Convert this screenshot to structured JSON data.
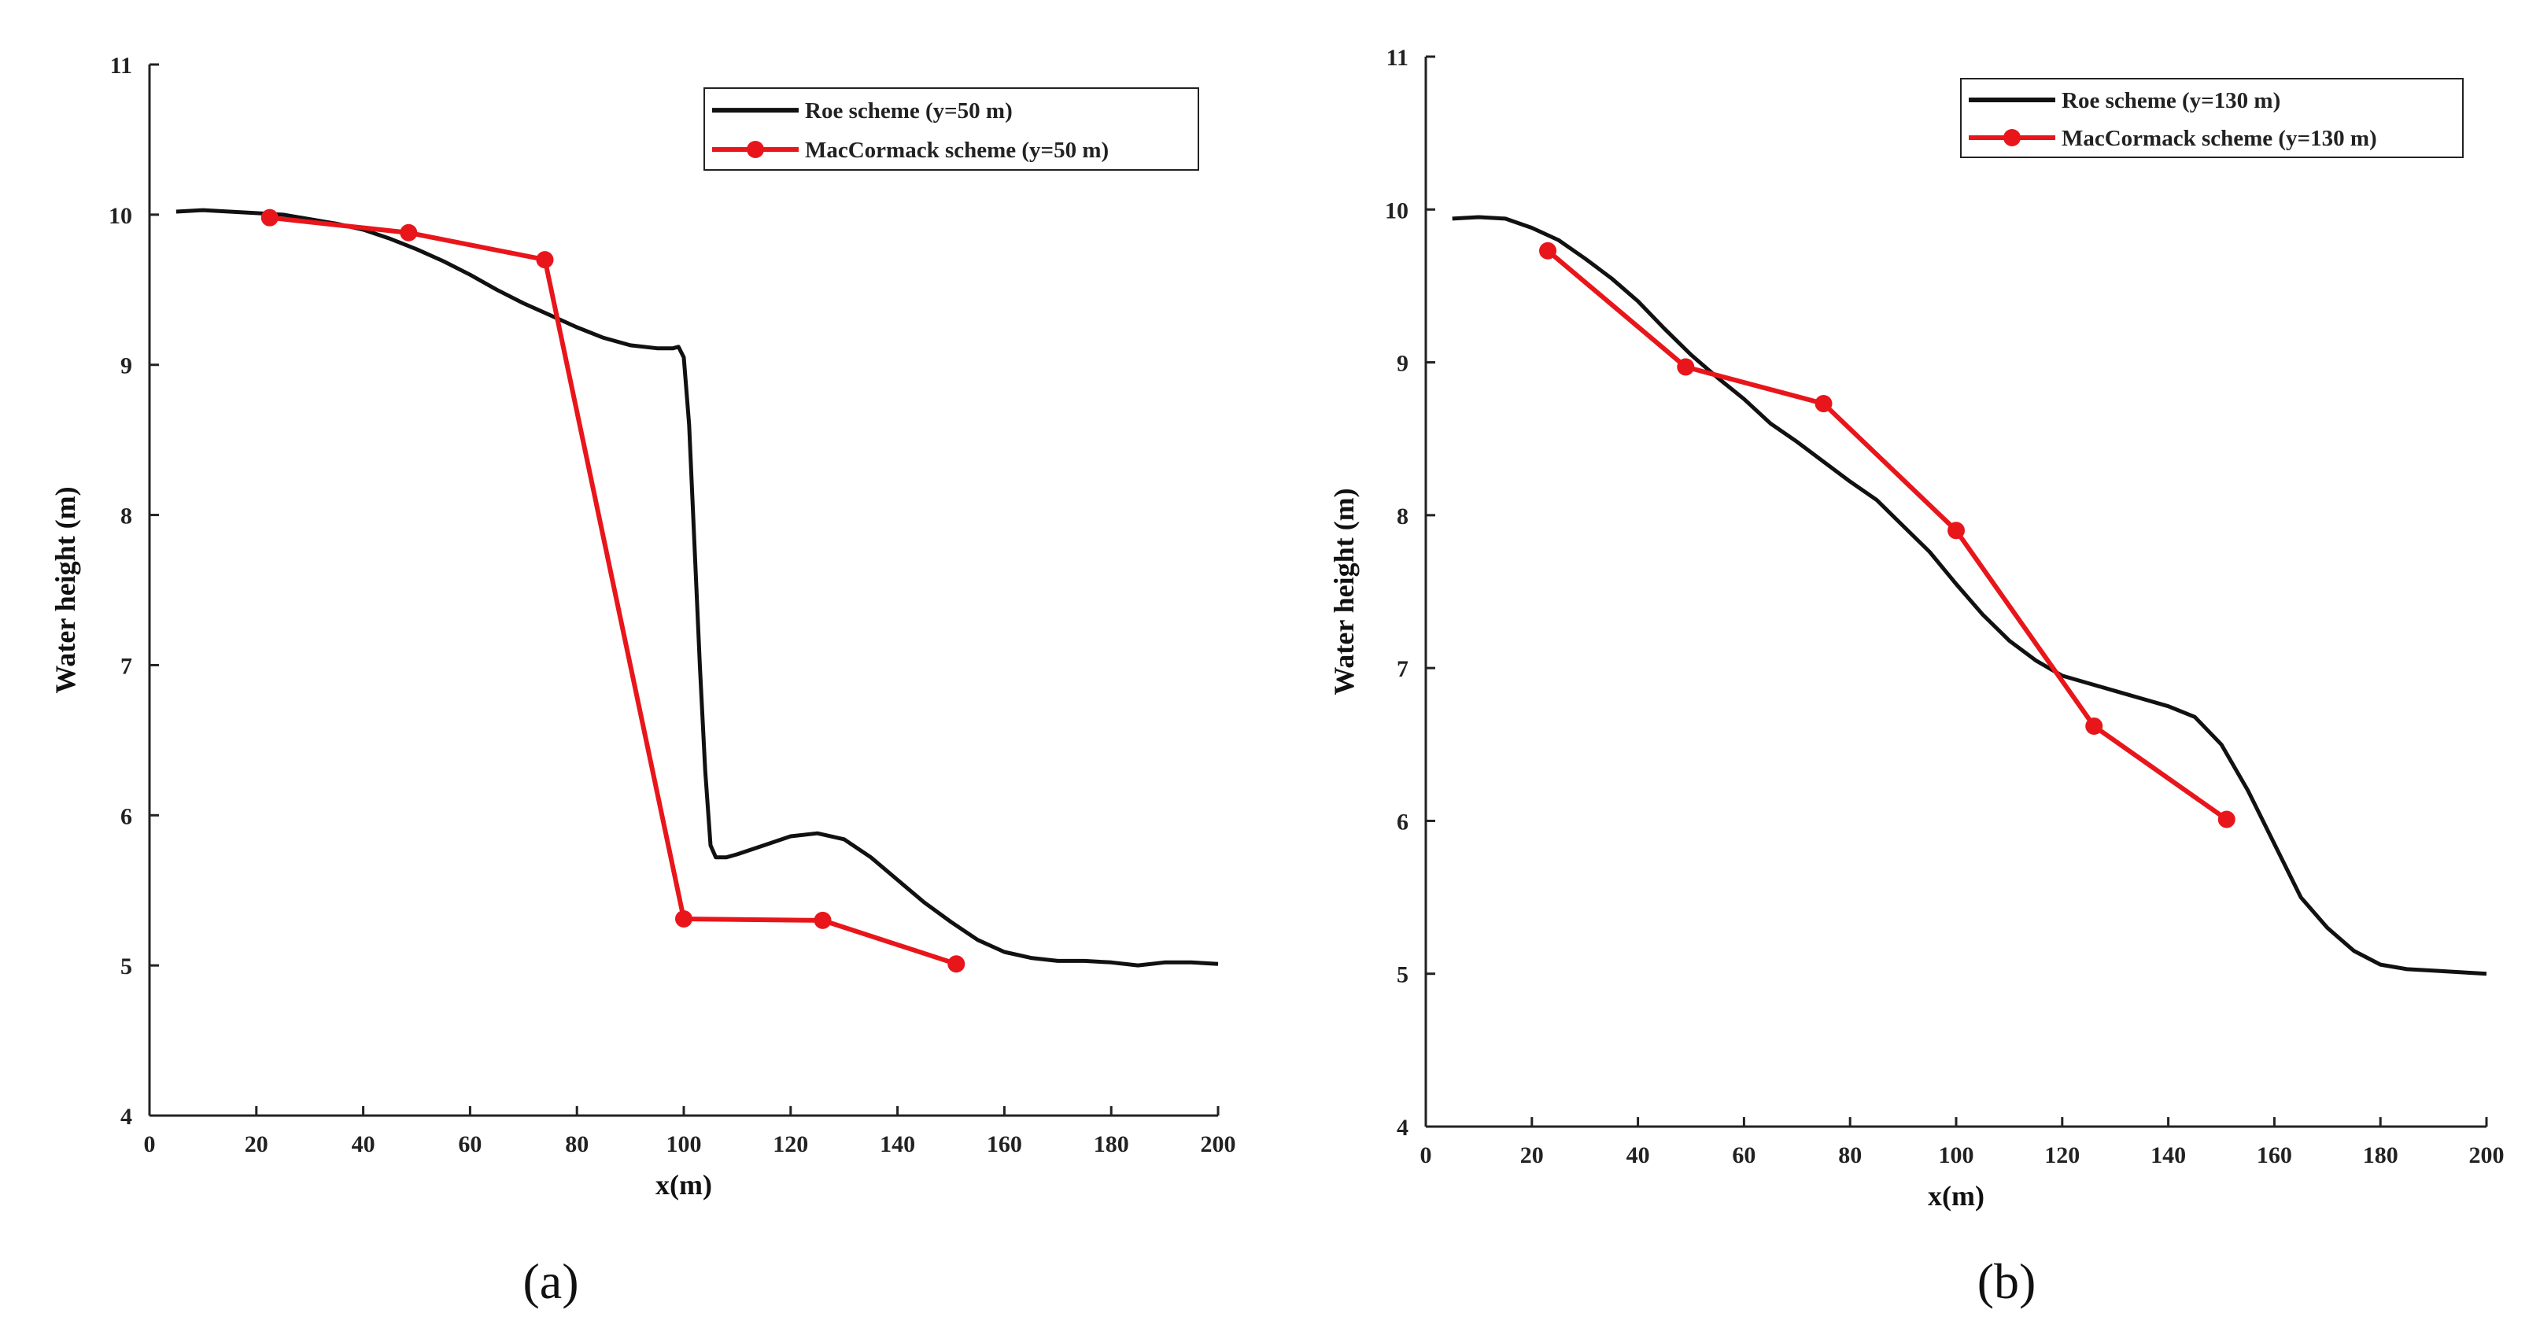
{
  "chart_data": [
    {
      "type": "line",
      "panel_label": "(a)",
      "xlabel": "x(m)",
      "ylabel": "Water height (m)",
      "xlim": [
        0,
        200
      ],
      "ylim": [
        4,
        11
      ],
      "xticks": [
        0,
        20,
        40,
        60,
        80,
        100,
        120,
        140,
        160,
        180,
        200
      ],
      "yticks": [
        4,
        5,
        6,
        7,
        8,
        9,
        10,
        11
      ],
      "legend_position": "top-right",
      "series": [
        {
          "name": "Roe scheme (y=50 m)",
          "color": "#111111",
          "marker": "none",
          "x": [
            5,
            10,
            15,
            20,
            25,
            30,
            35,
            40,
            45,
            50,
            55,
            60,
            65,
            70,
            75,
            80,
            85,
            90,
            95,
            98,
            99,
            100,
            101,
            102,
            103,
            104,
            105,
            106,
            108,
            110,
            115,
            120,
            125,
            130,
            135,
            140,
            145,
            150,
            155,
            160,
            165,
            170,
            175,
            180,
            185,
            190,
            195,
            200
          ],
          "y": [
            10.02,
            10.03,
            10.02,
            10.01,
            10.0,
            9.97,
            9.94,
            9.9,
            9.84,
            9.77,
            9.69,
            9.6,
            9.5,
            9.41,
            9.33,
            9.25,
            9.18,
            9.13,
            9.11,
            9.11,
            9.12,
            9.05,
            8.6,
            7.8,
            7.0,
            6.3,
            5.8,
            5.72,
            5.72,
            5.74,
            5.8,
            5.86,
            5.88,
            5.84,
            5.72,
            5.57,
            5.42,
            5.29,
            5.17,
            5.09,
            5.05,
            5.03,
            5.03,
            5.02,
            5.0,
            5.02,
            5.02,
            5.01
          ]
        },
        {
          "name": "MacCormack scheme (y=50 m)",
          "color": "#e8161b",
          "marker": "circle",
          "x": [
            22.5,
            48.5,
            74,
            100,
            126,
            151
          ],
          "y": [
            9.98,
            9.88,
            9.7,
            5.31,
            5.3,
            5.01
          ]
        }
      ]
    },
    {
      "type": "line",
      "panel_label": "(b)",
      "xlabel": "x(m)",
      "ylabel": "Water height (m)",
      "xlim": [
        0,
        200
      ],
      "ylim": [
        4,
        11
      ],
      "xticks": [
        0,
        20,
        40,
        60,
        80,
        100,
        120,
        140,
        160,
        180,
        200
      ],
      "yticks": [
        4,
        5,
        6,
        7,
        8,
        9,
        10,
        11
      ],
      "legend_position": "top-right",
      "series": [
        {
          "name": "Roe scheme (y=130 m)",
          "color": "#111111",
          "marker": "none",
          "x": [
            5,
            10,
            15,
            20,
            25,
            30,
            35,
            40,
            45,
            50,
            55,
            60,
            65,
            70,
            75,
            80,
            85,
            90,
            95,
            100,
            105,
            110,
            115,
            120,
            125,
            130,
            135,
            140,
            145,
            150,
            155,
            160,
            165,
            170,
            175,
            180,
            185,
            190,
            195,
            200
          ],
          "y": [
            9.94,
            9.95,
            9.94,
            9.88,
            9.8,
            9.68,
            9.55,
            9.4,
            9.22,
            9.05,
            8.9,
            8.76,
            8.6,
            8.48,
            8.35,
            8.22,
            8.1,
            7.93,
            7.76,
            7.55,
            7.35,
            7.18,
            7.05,
            6.95,
            6.9,
            6.85,
            6.8,
            6.75,
            6.68,
            6.5,
            6.2,
            5.85,
            5.5,
            5.3,
            5.15,
            5.06,
            5.03,
            5.02,
            5.01,
            5.0
          ]
        },
        {
          "name": "MacCormack scheme (y=130 m)",
          "color": "#e8161b",
          "marker": "circle",
          "x": [
            23,
            49,
            75,
            100,
            126,
            151
          ],
          "y": [
            9.73,
            8.97,
            8.73,
            7.9,
            6.62,
            6.01
          ]
        }
      ]
    }
  ]
}
